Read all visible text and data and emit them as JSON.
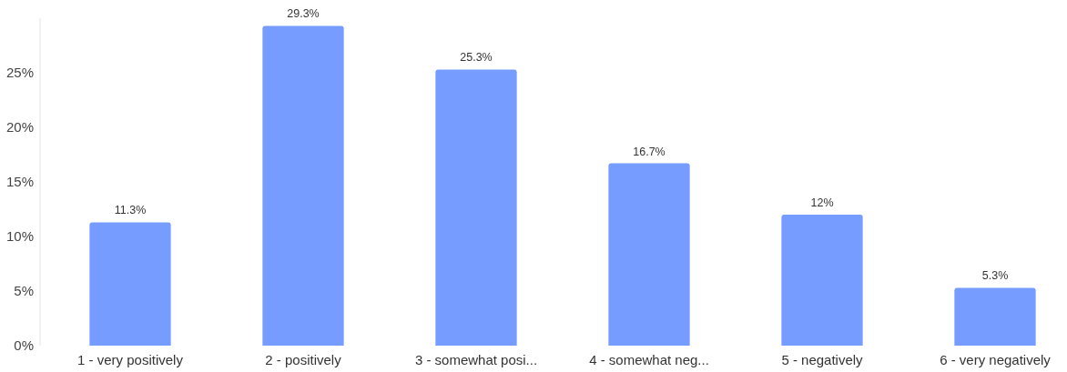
{
  "chart_data": {
    "type": "bar",
    "categories": [
      "1 - very positively",
      "2 - positively",
      "3 - somewhat posi...",
      "4 - somewhat neg...",
      "5 - negatively",
      "6 - very negatively"
    ],
    "values": [
      11.3,
      29.3,
      25.3,
      16.7,
      12,
      5.3
    ],
    "value_labels": [
      "11.3%",
      "29.3%",
      "25.3%",
      "16.7%",
      "12%",
      "5.3%"
    ],
    "color": "#779cff",
    "ylim": [
      0,
      30
    ],
    "yticks": [
      {
        "value": 0,
        "label": "0%"
      },
      {
        "value": 5,
        "label": "5%"
      },
      {
        "value": 10,
        "label": "10%"
      },
      {
        "value": 15,
        "label": "15%"
      },
      {
        "value": 20,
        "label": "20%"
      },
      {
        "value": 25,
        "label": "25%"
      }
    ]
  }
}
